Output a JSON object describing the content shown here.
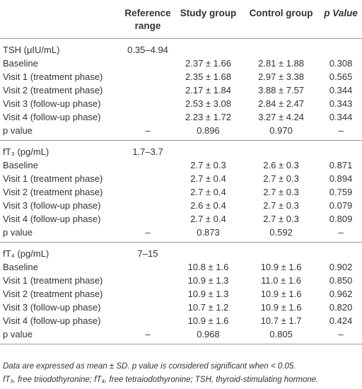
{
  "table": {
    "header": [
      "",
      "Reference range",
      "Study group",
      "Control group",
      "p Value"
    ],
    "sections": [
      {
        "label": "TSH (μIU/mL)",
        "reference": "0.35–4.94",
        "rows": [
          [
            "Baseline",
            "2.37 ± 1.66",
            "2.81 ± 1.88",
            "0.308"
          ],
          [
            "Visit 1 (treatment phase)",
            "2.35 ± 1.68",
            "2.97 ± 3.38",
            "0.565"
          ],
          [
            "Visit 2 (treatment phase)",
            "2.17 ± 1.84",
            "3.88 ± 7.57",
            "0.344"
          ],
          [
            "Visit 3 (follow-up phase)",
            "2.53 ± 3.08",
            "2.84 ± 2.47",
            "0.343"
          ],
          [
            "Visit 4 (follow-up phase)",
            "2.23 ± 1.72",
            "3.27 ± 4.24",
            "0.344"
          ],
          [
            "p value",
            "–",
            "0.896",
            "0.970",
            "–"
          ]
        ]
      },
      {
        "label": "fT₃ (pg/mL)",
        "reference": "1.7–3.7",
        "rows": [
          [
            "Baseline",
            "2.7 ± 0.3",
            "2.6 ± 0.3",
            "0.871"
          ],
          [
            "Visit 1 (treatment phase)",
            "2.7 ± 0.4",
            "2.7 ± 0.3",
            "0.894"
          ],
          [
            "Visit 2 (treatment phase)",
            "2.7 ± 0.4",
            "2.7 ± 0.3",
            "0.759"
          ],
          [
            "Visit 3 (follow-up phase)",
            "2.6 ± 0.4",
            "2.7 ± 0.3",
            "0.079"
          ],
          [
            "Visit 4 (follow-up phase)",
            "2.7 ± 0.4",
            "2.7 ± 0.3",
            "0.809"
          ],
          [
            "p value",
            "–",
            "0.873",
            "0.592",
            "–"
          ]
        ]
      },
      {
        "label": "fT₄ (pg/mL)",
        "reference": "7–15",
        "rows": [
          [
            "Baseline",
            "10.8 ± 1.6",
            "10.9 ± 1.6",
            "0.902"
          ],
          [
            "Visit 1 (treatment phase)",
            "10.9 ± 1.3",
            "11.0 ± 1.6",
            "0.850"
          ],
          [
            "Visit 2 (treatment phase)",
            "10.9 ± 1.3",
            "10.9 ± 1.6",
            "0.962"
          ],
          [
            "Visit 3 (follow-up phase)",
            "10.7 ± 1.2",
            "10.9 ± 1.6",
            "0.820"
          ],
          [
            "Visit 4 (follow-up phase)",
            "10.9 ± 1.6",
            "10.7 ± 1.7",
            "0.424"
          ],
          [
            "p value",
            "–",
            "0.968",
            "0.805",
            "–"
          ]
        ]
      }
    ]
  },
  "footnotes": [
    "Data are expressed as mean ± SD. p value is considered significant when < 0.05.",
    "fT₃, free triiodothyronine; fT₄, free tetraiodothyronine; TSH, thyroid-stimulating hormone."
  ]
}
